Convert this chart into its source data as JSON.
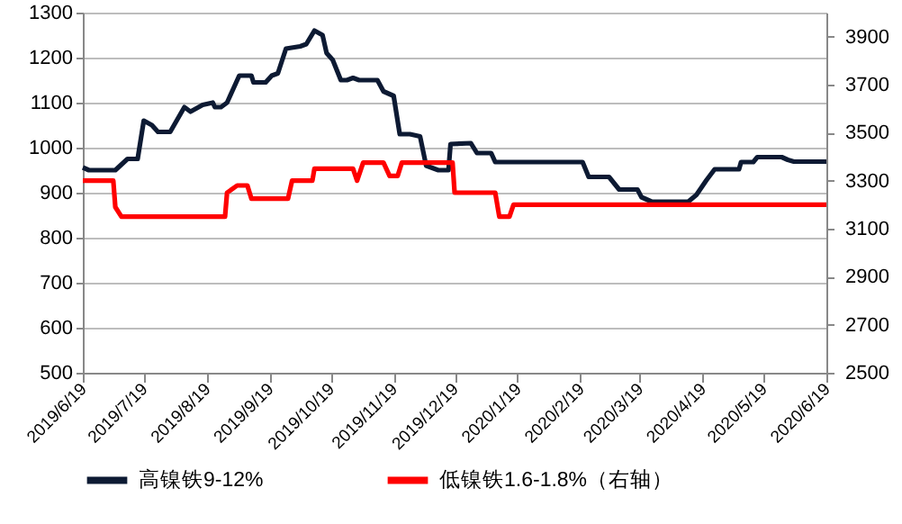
{
  "chart_data": {
    "type": "line",
    "xlim": [
      "2019-06-19",
      "2020-06-19"
    ],
    "xticks": [
      {
        "value": "2019-06-19",
        "label": "2019/6/19"
      },
      {
        "value": "2019-07-19",
        "label": "2019/7/19"
      },
      {
        "value": "2019-08-19",
        "label": "2019/8/19"
      },
      {
        "value": "2019-09-19",
        "label": "2019/9/19"
      },
      {
        "value": "2019-10-19",
        "label": "2019/10/19"
      },
      {
        "value": "2019-11-19",
        "label": "2019/11/19"
      },
      {
        "value": "2019-12-19",
        "label": "2019/12/19"
      },
      {
        "value": "2020-01-19",
        "label": "2020/1/19"
      },
      {
        "value": "2020-02-19",
        "label": "2020/2/19"
      },
      {
        "value": "2020-03-19",
        "label": "2020/3/19"
      },
      {
        "value": "2020-04-19",
        "label": "2020/4/19"
      },
      {
        "value": "2020-05-19",
        "label": "2020/5/19"
      },
      {
        "value": "2020-06-19",
        "label": "2020/6/19"
      }
    ],
    "ylim": [
      500,
      1300
    ],
    "yticks": [
      500,
      600,
      700,
      800,
      900,
      1000,
      1100,
      1200,
      1300
    ],
    "y2lim": [
      2500,
      4000
    ],
    "y2ticks": [
      2500,
      2700,
      2900,
      3100,
      3300,
      3500,
      3700,
      3900
    ],
    "grid": "y",
    "legend": "bottom",
    "marker": "none",
    "line_style": "solid",
    "series": [
      {
        "name": "高镍铁9-12%",
        "color": "#0d1a33",
        "x": [
          "2019-06-19",
          "2019-06-22",
          "2019-07-05",
          "2019-07-11",
          "2019-07-16",
          "2019-07-19",
          "2019-07-23",
          "2019-07-26",
          "2019-08-01",
          "2019-08-08",
          "2019-08-11",
          "2019-08-17",
          "2019-08-22",
          "2019-08-23",
          "2019-08-26",
          "2019-08-29",
          "2019-09-04",
          "2019-09-10",
          "2019-09-11",
          "2019-09-17",
          "2019-09-20",
          "2019-09-23",
          "2019-09-27",
          "2019-10-04",
          "2019-10-07",
          "2019-10-11",
          "2019-10-15",
          "2019-10-17",
          "2019-10-20",
          "2019-10-24",
          "2019-10-27",
          "2019-10-30",
          "2019-11-02",
          "2019-11-11",
          "2019-11-14",
          "2019-11-19",
          "2019-11-22",
          "2019-11-27",
          "2019-12-02",
          "2019-12-05",
          "2019-12-11",
          "2019-12-16",
          "2019-12-17",
          "2019-12-27",
          "2019-12-30",
          "2020-01-06",
          "2020-01-08",
          "2020-02-20",
          "2020-02-23",
          "2020-03-04",
          "2020-03-09",
          "2020-03-18",
          "2020-03-20",
          "2020-03-25",
          "2020-04-12",
          "2020-04-16",
          "2020-04-21",
          "2020-04-25",
          "2020-05-07",
          "2020-05-08",
          "2020-05-14",
          "2020-05-16",
          "2020-05-28",
          "2020-05-31",
          "2020-06-03",
          "2020-06-19"
        ],
        "values": [
          956,
          950,
          950,
          975,
          975,
          1060,
          1050,
          1035,
          1035,
          1090,
          1080,
          1095,
          1100,
          1090,
          1090,
          1100,
          1160,
          1160,
          1145,
          1145,
          1160,
          1165,
          1220,
          1225,
          1230,
          1260,
          1250,
          1210,
          1195,
          1150,
          1150,
          1155,
          1150,
          1150,
          1125,
          1115,
          1030,
          1030,
          1025,
          960,
          950,
          950,
          1008,
          1010,
          988,
          988,
          968,
          968,
          935,
          935,
          907,
          907,
          890,
          880,
          880,
          895,
          928,
          952,
          952,
          968,
          968,
          979,
          979,
          973,
          969,
          969
        ]
      },
      {
        "name": "低镍铁1.6-1.8%（右轴）",
        "color": "#ff0000",
        "axis": "y2",
        "x": [
          "2019-06-19",
          "2019-07-04",
          "2019-07-05",
          "2019-07-08",
          "2019-08-28",
          "2019-08-29",
          "2019-09-03",
          "2019-09-08",
          "2019-09-10",
          "2019-09-28",
          "2019-09-30",
          "2019-10-10",
          "2019-10-11",
          "2019-10-30",
          "2019-11-01",
          "2019-11-04",
          "2019-11-14",
          "2019-11-17",
          "2019-11-21",
          "2019-11-23",
          "2019-12-18",
          "2019-12-19",
          "2020-01-08",
          "2020-01-10",
          "2020-01-15",
          "2020-01-17",
          "2020-06-19"
        ],
        "values": [
          3300,
          3300,
          3190,
          3150,
          3150,
          3250,
          3280,
          3280,
          3225,
          3225,
          3300,
          3300,
          3350,
          3350,
          3300,
          3375,
          3375,
          3320,
          3320,
          3375,
          3375,
          3250,
          3250,
          3150,
          3150,
          3200,
          3200
        ]
      }
    ]
  }
}
